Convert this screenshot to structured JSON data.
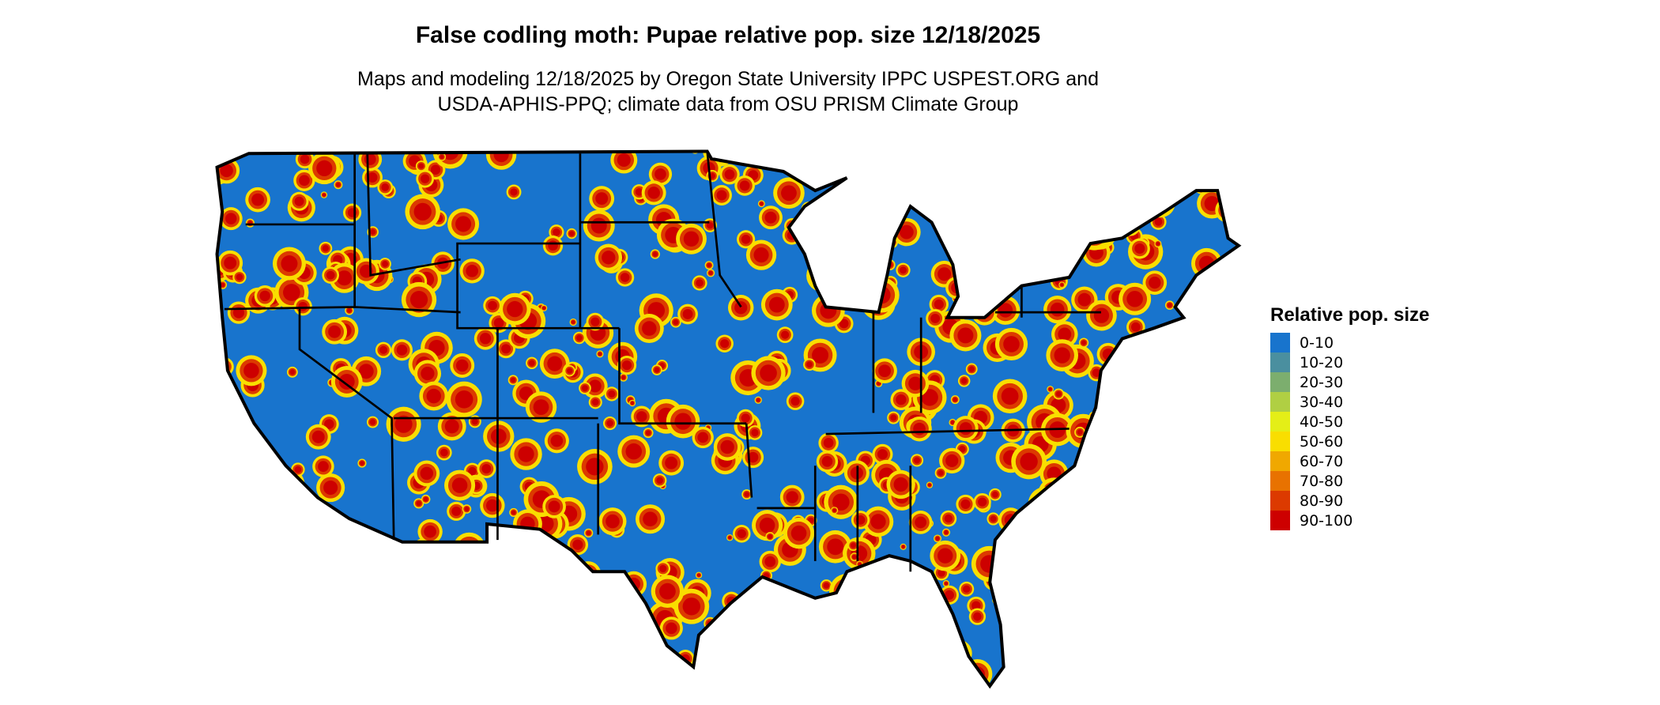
{
  "title": "False codling moth: Pupae relative pop. size 12/18/2025",
  "subtitle_line1": "Maps and modeling 12/18/2025 by Oregon State University IPPC USPEST.ORG and",
  "subtitle_line2": "USDA-APHIS-PPQ; climate data from OSU PRISM Climate Group",
  "legend": {
    "title": "Relative pop. size",
    "items": [
      {
        "label": "0-10",
        "color": "#1874CD"
      },
      {
        "label": "10-20",
        "color": "#4A8F9F"
      },
      {
        "label": "20-30",
        "color": "#7CAE6E"
      },
      {
        "label": "30-40",
        "color": "#B0CF43"
      },
      {
        "label": "40-50",
        "color": "#E4EE17"
      },
      {
        "label": "50-60",
        "color": "#F9DE00"
      },
      {
        "label": "60-70",
        "color": "#F0A800"
      },
      {
        "label": "70-80",
        "color": "#E87200"
      },
      {
        "label": "80-90",
        "color": "#DC3A00"
      },
      {
        "label": "90-100",
        "color": "#CD0000"
      }
    ]
  },
  "map": {
    "region": "Contiguous United States",
    "background_class": "0-10"
  }
}
